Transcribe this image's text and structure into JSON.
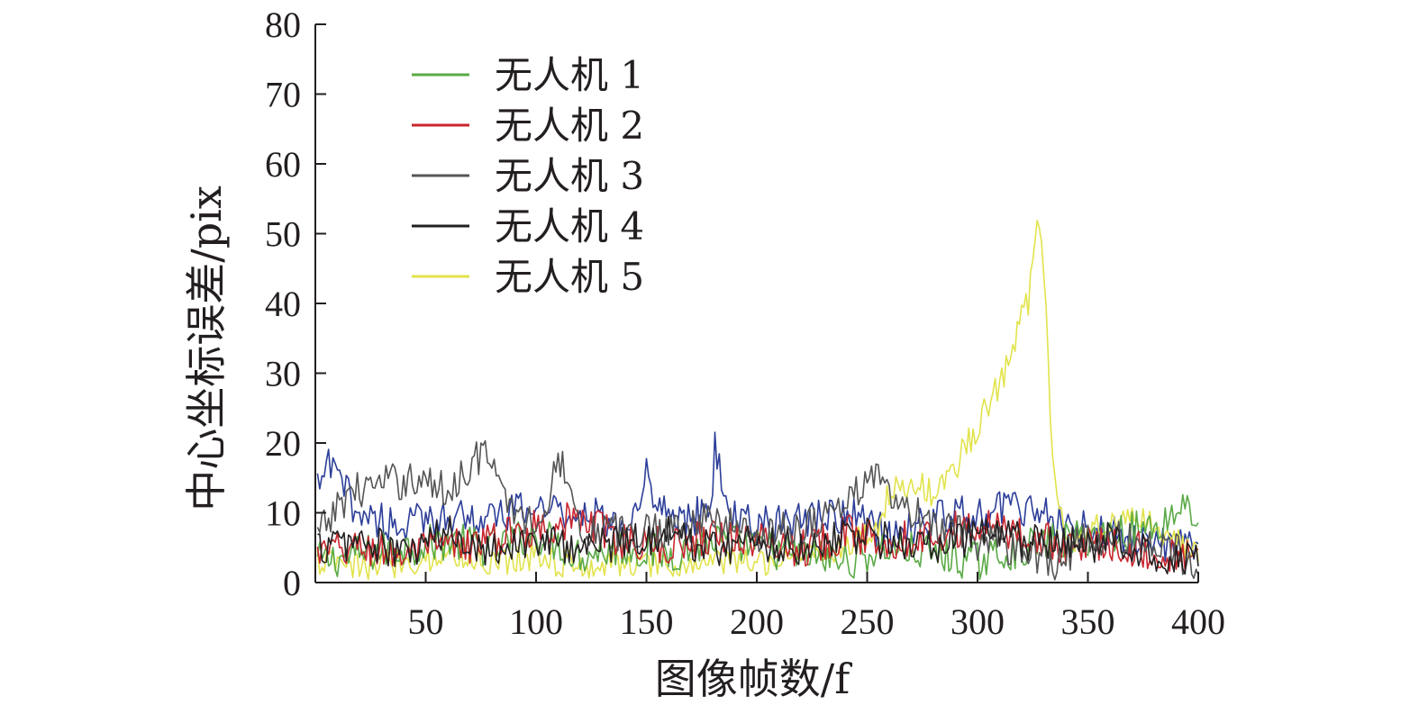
{
  "chart_data": {
    "type": "line",
    "title": "",
    "xlabel": "图像帧数/f",
    "ylabel": "中心坐标误差/pix",
    "xlim": [
      0,
      400
    ],
    "ylim": [
      0,
      80
    ],
    "xticks": [
      "50",
      "100",
      "150",
      "200",
      "250",
      "300",
      "350",
      "400"
    ],
    "yticks": [
      "0",
      "10",
      "20",
      "30",
      "40",
      "50",
      "60",
      "70",
      "80"
    ],
    "grid": false,
    "legend_position": "top-left",
    "series": [
      {
        "name": "无人机 1",
        "color": "#5aaa46",
        "x": [
          0,
          20,
          40,
          60,
          80,
          100,
          120,
          140,
          160,
          180,
          200,
          220,
          240,
          260,
          280,
          300,
          320,
          340,
          360,
          380,
          390,
          395,
          400
        ],
        "y": [
          3,
          4,
          5,
          6,
          5,
          7,
          4,
          5,
          4,
          6,
          5,
          4,
          3,
          5,
          4,
          3,
          5,
          6,
          7,
          8,
          10,
          12,
          8
        ]
      },
      {
        "name": "无人机 2",
        "color": "#c8262e",
        "x": [
          0,
          20,
          40,
          60,
          80,
          100,
          120,
          140,
          160,
          180,
          200,
          220,
          240,
          260,
          280,
          300,
          320,
          340,
          360,
          380,
          400
        ],
        "y": [
          4,
          5,
          4,
          5,
          6,
          8,
          9,
          6,
          5,
          7,
          6,
          5,
          7,
          6,
          7,
          8,
          7,
          5,
          6,
          4,
          3
        ]
      },
      {
        "name": "无人机 3",
        "color": "#555555",
        "x": [
          0,
          15,
          30,
          45,
          60,
          70,
          77,
          85,
          100,
          112,
          120,
          140,
          160,
          180,
          200,
          220,
          240,
          252,
          260,
          280,
          300,
          320,
          335,
          350,
          370,
          385,
          400
        ],
        "y": [
          6,
          13,
          14,
          15,
          13,
          17,
          19,
          12,
          8,
          18,
          8,
          7,
          8,
          9,
          7,
          8,
          11,
          16,
          12,
          8,
          6,
          5,
          3,
          6,
          6,
          5,
          3
        ]
      },
      {
        "name": "无人机 4",
        "color": "#231f20",
        "x": [
          0,
          20,
          40,
          60,
          80,
          100,
          120,
          140,
          160,
          180,
          200,
          220,
          240,
          260,
          280,
          300,
          320,
          340,
          360,
          380,
          400
        ],
        "y": [
          5,
          6,
          4,
          7,
          5,
          6,
          5,
          6,
          7,
          5,
          6,
          5,
          7,
          6,
          5,
          7,
          6,
          5,
          6,
          4,
          4
        ]
      },
      {
        "name": "无人机 5",
        "color": "#e2e34c",
        "x": [
          0,
          20,
          40,
          60,
          80,
          100,
          120,
          140,
          160,
          180,
          200,
          220,
          240,
          255,
          260,
          270,
          280,
          290,
          295,
          300,
          305,
          310,
          315,
          320,
          323,
          326,
          327,
          329,
          331,
          333,
          336,
          339,
          342,
          350,
          360,
          370,
          380,
          390,
          400
        ],
        "y": [
          3,
          2,
          3,
          4,
          3,
          4,
          2,
          3,
          2,
          3,
          3,
          4,
          5,
          8,
          13,
          14,
          13,
          16,
          20,
          22,
          26,
          28,
          33,
          38,
          40,
          50,
          54,
          50,
          40,
          23,
          12,
          8,
          6,
          7,
          9,
          10,
          8,
          6,
          4
        ]
      },
      {
        "name": "",
        "color": "#2c3e99",
        "x": [
          0,
          5,
          10,
          20,
          40,
          50,
          60,
          80,
          100,
          120,
          140,
          150,
          160,
          180,
          181,
          190,
          200,
          220,
          240,
          250,
          260,
          280,
          300,
          320,
          340,
          360,
          380,
          400
        ],
        "y": [
          12,
          17,
          15,
          10,
          8,
          9,
          10,
          9,
          11,
          10,
          8,
          15,
          9,
          10,
          19,
          9,
          8,
          9,
          10,
          8,
          7,
          9,
          10,
          11,
          8,
          7,
          6,
          5
        ]
      }
    ]
  }
}
